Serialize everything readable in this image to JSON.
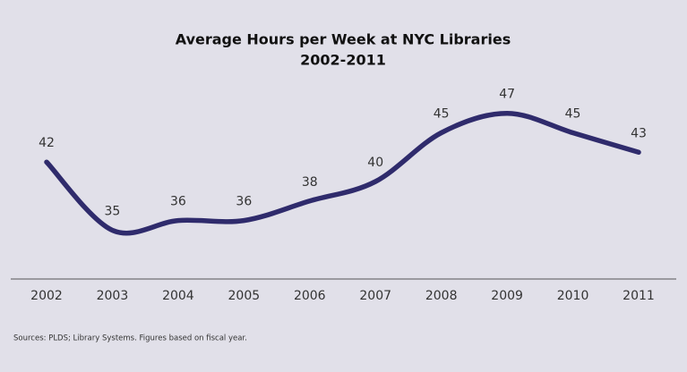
{
  "chart_data": {
    "type": "line",
    "title": "Average Hours per Week at NYC Libraries",
    "subtitle": "2002-2011",
    "categories": [
      "2002",
      "2003",
      "2004",
      "2005",
      "2006",
      "2007",
      "2008",
      "2009",
      "2010",
      "2011"
    ],
    "series": [
      {
        "name": "Average hours per week",
        "color": "#2f2b6c",
        "values": [
          42,
          35,
          36,
          36,
          38,
          40,
          45,
          47,
          45,
          43
        ]
      }
    ],
    "ylim": [
      30,
      50
    ],
    "note": "Sources: PLDS; Library Systems. Figures based on fiscal year."
  }
}
